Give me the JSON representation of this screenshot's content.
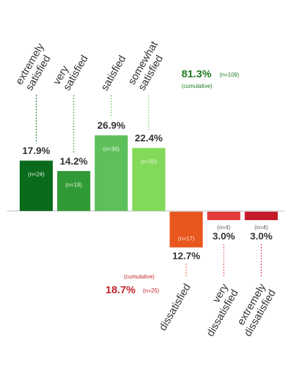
{
  "chart_data": {
    "type": "diverging-bar",
    "categories": [
      "extremely satisfied",
      "very satisfied",
      "satisfied",
      "somewhat satisfied",
      "dissatisfied",
      "very dissatisfied",
      "extremely dissatisfied"
    ],
    "values": [
      17.9,
      14.2,
      26.9,
      22.4,
      -12.7,
      -3.0,
      -3.0
    ],
    "value_labels": [
      "17.9%",
      "14.2%",
      "26.9%",
      "22.4%",
      "12.7%",
      "3.0%",
      "3.0%"
    ],
    "n_labels": [
      "(n=24)",
      "(n=19)",
      "(n=36)",
      "(n=30)",
      "(n=17)",
      "(n=4)",
      "(n=4)"
    ],
    "colors": [
      "#0b6b1c",
      "#2f9a36",
      "#5dc05b",
      "#82d95a",
      "#e8571e",
      "#e23b3b",
      "#c41b2c"
    ],
    "annotations": {
      "positive": {
        "value_label": "81.3%",
        "n_label": "(n=109)",
        "note": "(cumulative)",
        "color": "#1e7a1e"
      },
      "negative": {
        "value_label": "18.7%",
        "n_label": "(n=25)",
        "note": "(cumulative)",
        "color": "#c4252e"
      }
    }
  }
}
